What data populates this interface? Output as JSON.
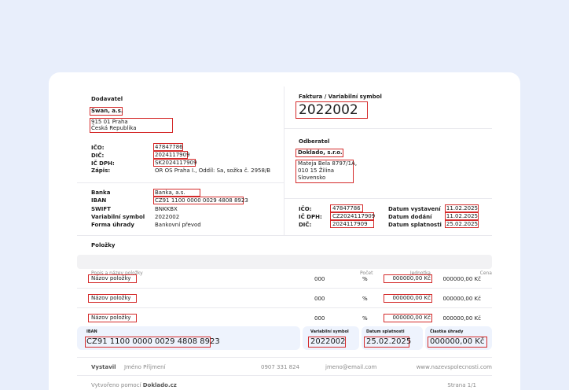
{
  "supplier": {
    "heading": "Dodavatel",
    "name": "Swan, a.s.",
    "address_line1": "915 01 Praha",
    "address_line2": "Česká Republika",
    "ico_label": "IČO:",
    "ico": "47847786",
    "dic_label": "DIČ:",
    "dic": "2024117909",
    "icdph_label": "IČ DPH:",
    "icdph": "SK2024117909",
    "register_label": "Zápis:",
    "register": "OR OS Praha I., Oddíl: Sa, sožka č. 2958/B"
  },
  "bank": {
    "bank_label": "Banka",
    "bank": "Banka, a.s.",
    "iban_label": "IBAN",
    "iban": "CZ91 1100 0000 0029 4808 8923",
    "swift_label": "SWIFT",
    "swift": "BNKKBX",
    "vs_label": "Variabilní symbol",
    "vs": "2022002",
    "payment_label": "Forma úhrady",
    "payment": "Bankovní převod"
  },
  "invoice": {
    "heading": "Faktura / Variabilní symbol",
    "number": "2022002"
  },
  "customer": {
    "heading": "Odberatel",
    "name": "Doklado, s.r.o.",
    "address_line1": "Mateja Bela 8797/1A,",
    "address_line2": "010 15 Žilina",
    "address_line3": "Slovensko",
    "ico_label": "IČO:",
    "ico": "47847786",
    "icdph_label": "IČ DPH:",
    "icdph": "CZ2024117909",
    "dic_label": "DIČ:",
    "dic": "2024117909"
  },
  "dates": {
    "issued_label": "Datum vystavení",
    "issued": "11.02.2025",
    "delivery_label": "Datum dodání",
    "delivery": "11.02.2025",
    "due_label": "Datum splatnosti",
    "due": "25.02.2025"
  },
  "items": {
    "heading": "Položky",
    "col_desc": "Popis a název položky",
    "col_qty": "Počet",
    "col_unit": "Jednotka",
    "col_price": "Cena",
    "rows": [
      {
        "name": "Názov položky",
        "qty": "000",
        "unit": "%",
        "unit_price": "000000,00 Kč",
        "price": "000000,00 Kč"
      },
      {
        "name": "Názov položky",
        "qty": "000",
        "unit": "%",
        "unit_price": "000000,00 Kč",
        "price": "000000,00 Kč"
      },
      {
        "name": "Názov položky",
        "qty": "000",
        "unit": "%",
        "unit_price": "000000,00 Kč",
        "price": "000000,00 Kč"
      }
    ]
  },
  "payment_summary": {
    "iban_label": "IBAN",
    "iban": "CZ91 1100 0000 0029 4808 8923",
    "vs_label": "Variabilní symbol",
    "vs": "2022002",
    "due_label": "Datum splatnosti",
    "due": "25.02.2025",
    "amount_label": "Čiastka úhrady",
    "amount": "000000,00 Kč"
  },
  "footer": {
    "issued_by_label": "Vystavil",
    "issuer_name": "Jméno Příjmení",
    "phone": "0907 331 824",
    "email": "jmeno@email.com",
    "website": "www.nazevspolecnosti.com",
    "created_prefix": "Vytvořeno pomocí",
    "created_brand": "Doklado.cz",
    "page_label": "Strana",
    "page": "1/1"
  }
}
